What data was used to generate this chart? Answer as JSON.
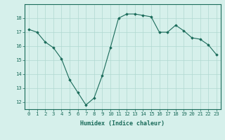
{
  "x": [
    0,
    1,
    2,
    3,
    4,
    5,
    6,
    7,
    8,
    9,
    10,
    11,
    12,
    13,
    14,
    15,
    16,
    17,
    18,
    19,
    20,
    21,
    22,
    23
  ],
  "y": [
    17.2,
    17.0,
    16.3,
    15.9,
    15.1,
    13.6,
    12.7,
    11.8,
    12.3,
    13.9,
    15.9,
    18.0,
    18.3,
    18.3,
    18.2,
    18.1,
    17.0,
    17.0,
    17.5,
    17.1,
    16.6,
    16.5,
    16.1,
    15.4
  ],
  "xlabel": "Humidex (Indice chaleur)",
  "ylim": [
    11.5,
    19.0
  ],
  "xlim": [
    -0.5,
    23.5
  ],
  "yticks": [
    12,
    13,
    14,
    15,
    16,
    17,
    18
  ],
  "xticks": [
    0,
    1,
    2,
    3,
    4,
    5,
    6,
    7,
    8,
    9,
    10,
    11,
    12,
    13,
    14,
    15,
    16,
    17,
    18,
    19,
    20,
    21,
    22,
    23
  ],
  "line_color": "#1a6b5a",
  "marker": "D",
  "marker_size": 1.8,
  "bg_color": "#d6f0eb",
  "grid_color": "#b0d8d0",
  "xlabel_fontsize": 6.0,
  "tick_fontsize": 5.2
}
